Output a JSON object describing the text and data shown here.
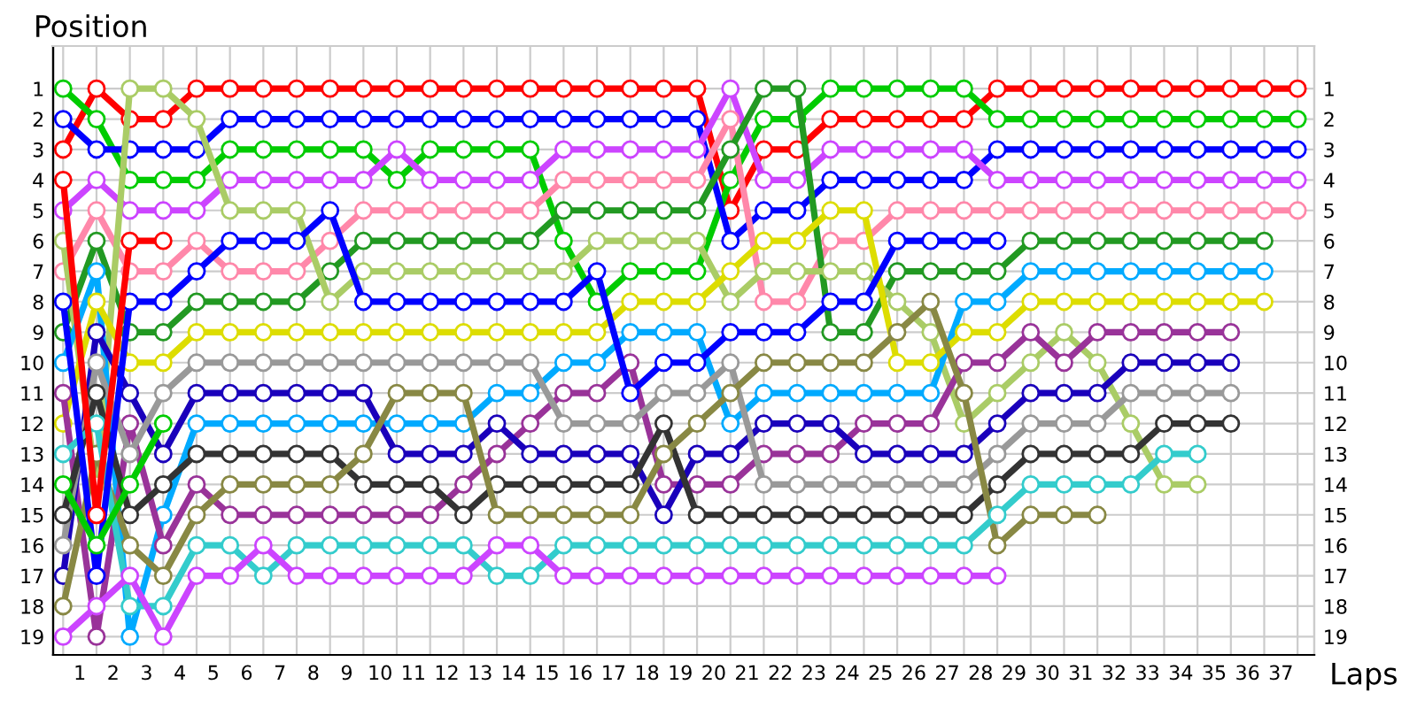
{
  "chart_data": {
    "type": "line",
    "xlabel": "Laps",
    "ylabel": "Position",
    "x": [
      0,
      1,
      2,
      3,
      4,
      5,
      6,
      7,
      8,
      9,
      10,
      11,
      12,
      13,
      14,
      15,
      16,
      17,
      18,
      19,
      20,
      21,
      22,
      23,
      24,
      25,
      26,
      27,
      28,
      29,
      30,
      31,
      32,
      33,
      34,
      35,
      36,
      37
    ],
    "xlim": [
      -0.3,
      37.5
    ],
    "ylim": [
      19.6,
      -0.4
    ],
    "y2lim": [
      19.6,
      -0.4
    ],
    "xticks": [
      {
        "value": 0.5,
        "label": "1"
      },
      {
        "value": 1.5,
        "label": "2"
      },
      {
        "value": 2.5,
        "label": "3"
      },
      {
        "value": 3.5,
        "label": "4"
      },
      {
        "value": 4.5,
        "label": "5"
      },
      {
        "value": 5.5,
        "label": "6"
      },
      {
        "value": 6.5,
        "label": "7"
      },
      {
        "value": 7.5,
        "label": "8"
      },
      {
        "value": 8.5,
        "label": "9"
      },
      {
        "value": 9.5,
        "label": "10"
      },
      {
        "value": 10.5,
        "label": "11"
      },
      {
        "value": 11.5,
        "label": "12"
      },
      {
        "value": 12.5,
        "label": "13"
      },
      {
        "value": 13.5,
        "label": "14"
      },
      {
        "value": 14.5,
        "label": "15"
      },
      {
        "value": 15.5,
        "label": "16"
      },
      {
        "value": 16.5,
        "label": "17"
      },
      {
        "value": 17.5,
        "label": "18"
      },
      {
        "value": 18.5,
        "label": "19"
      },
      {
        "value": 19.5,
        "label": "20"
      },
      {
        "value": 20.5,
        "label": "21"
      },
      {
        "value": 21.5,
        "label": "22"
      },
      {
        "value": 22.5,
        "label": "23"
      },
      {
        "value": 23.5,
        "label": "24"
      },
      {
        "value": 24.5,
        "label": "25"
      },
      {
        "value": 25.5,
        "label": "26"
      },
      {
        "value": 26.5,
        "label": "27"
      },
      {
        "value": 27.5,
        "label": "28"
      },
      {
        "value": 28.5,
        "label": "29"
      },
      {
        "value": 29.5,
        "label": "30"
      },
      {
        "value": 30.5,
        "label": "31"
      },
      {
        "value": 31.5,
        "label": "32"
      },
      {
        "value": 32.5,
        "label": "33"
      },
      {
        "value": 33.5,
        "label": "34"
      },
      {
        "value": 34.5,
        "label": "35"
      },
      {
        "value": 35.5,
        "label": "36"
      },
      {
        "value": 36.5,
        "label": "37"
      }
    ],
    "yticks": [
      1,
      2,
      3,
      4,
      5,
      6,
      7,
      8,
      9,
      10,
      11,
      12,
      13,
      14,
      15,
      16,
      17,
      18,
      19
    ],
    "y2ticks": [
      1,
      2,
      3,
      4,
      5,
      6,
      7,
      8,
      9,
      10,
      11,
      12,
      13,
      14,
      15,
      16,
      17,
      18,
      19
    ],
    "grid": true,
    "marker": "circle",
    "line_style": "solid",
    "series": [
      {
        "color": "#ff0000",
        "values": [
          3,
          1,
          2,
          2,
          1,
          1,
          1,
          1,
          1,
          1,
          1,
          1,
          1,
          1,
          1,
          1,
          1,
          1,
          1,
          1,
          5,
          3,
          3,
          2,
          2,
          2,
          2,
          2,
          1,
          1,
          1,
          1,
          1,
          1,
          1,
          1,
          1,
          1
        ]
      },
      {
        "color": "#00cc00",
        "values": [
          1,
          2,
          4,
          4,
          4,
          3,
          3,
          3,
          3,
          3,
          4,
          3,
          3,
          3,
          3,
          6,
          8,
          7,
          7,
          7,
          4,
          2,
          2,
          1,
          1,
          1,
          1,
          1,
          2,
          2,
          2,
          2,
          2,
          2,
          2,
          2,
          2,
          2
        ]
      },
      {
        "color": "#0000ff",
        "values": [
          2,
          3,
          3,
          3,
          3,
          2,
          2,
          2,
          2,
          2,
          2,
          2,
          2,
          2,
          2,
          2,
          2,
          2,
          2,
          2,
          6,
          5,
          5,
          4,
          4,
          4,
          4,
          4,
          3,
          3,
          3,
          3,
          3,
          3,
          3,
          3,
          3,
          3
        ]
      },
      {
        "color": "#cc44ff",
        "values": [
          5,
          4,
          5,
          5,
          5,
          4,
          4,
          4,
          4,
          4,
          3,
          4,
          4,
          4,
          4,
          3,
          3,
          3,
          3,
          3,
          1,
          4,
          4,
          3,
          3,
          3,
          3,
          3,
          4,
          4,
          4,
          4,
          4,
          4,
          4,
          4,
          4,
          4
        ]
      },
      {
        "color": "#ff88aa",
        "values": [
          7,
          5,
          7,
          7,
          6,
          7,
          7,
          7,
          6,
          5,
          5,
          5,
          5,
          5,
          5,
          4,
          4,
          4,
          4,
          4,
          2,
          8,
          8,
          6,
          6,
          5,
          5,
          5,
          5,
          5,
          5,
          5,
          5,
          5,
          5,
          5,
          5,
          5
        ]
      },
      {
        "color": "#229922",
        "values": [
          9,
          6,
          9,
          9,
          8,
          8,
          8,
          8,
          7,
          6,
          6,
          6,
          6,
          6,
          6,
          5,
          5,
          5,
          5,
          5,
          3,
          1,
          1,
          9,
          9,
          7,
          7,
          7,
          7,
          6,
          6,
          6,
          6,
          6,
          6,
          6,
          6,
          null
        ]
      },
      {
        "color": "#aacc66",
        "values": [
          6,
          14,
          1,
          1,
          2,
          5,
          5,
          5,
          8,
          7,
          7,
          7,
          7,
          7,
          7,
          7,
          6,
          6,
          6,
          6,
          8,
          7,
          7,
          7,
          7,
          8,
          9,
          12,
          11,
          10,
          9,
          10,
          12,
          14,
          14,
          null,
          null,
          null
        ]
      },
      {
        "color": "#00aaff",
        "values": [
          10,
          7,
          19,
          15,
          12,
          12,
          12,
          12,
          12,
          12,
          12,
          12,
          12,
          11,
          11,
          10,
          10,
          9,
          9,
          9,
          12,
          11,
          11,
          11,
          11,
          11,
          11,
          8,
          8,
          7,
          7,
          7,
          7,
          7,
          7,
          7,
          7,
          null
        ]
      },
      {
        "color": "#dddd00",
        "values": [
          12,
          8,
          10,
          10,
          9,
          9,
          9,
          9,
          9,
          9,
          9,
          9,
          9,
          9,
          9,
          9,
          9,
          8,
          8,
          8,
          7,
          6,
          6,
          5,
          5,
          10,
          10,
          9,
          9,
          8,
          8,
          8,
          8,
          8,
          8,
          8,
          8,
          null
        ]
      },
      {
        "color": "#993399",
        "values": [
          11,
          19,
          12,
          16,
          14,
          15,
          15,
          15,
          15,
          15,
          15,
          15,
          14,
          13,
          12,
          11,
          11,
          10,
          14,
          14,
          14,
          13,
          13,
          13,
          12,
          12,
          12,
          10,
          10,
          9,
          10,
          9,
          9,
          9,
          9,
          9,
          null,
          null
        ]
      },
      {
        "color": "#1a00bb",
        "values": [
          17,
          9,
          11,
          13,
          11,
          11,
          11,
          11,
          11,
          11,
          13,
          13,
          13,
          12,
          13,
          13,
          13,
          13,
          15,
          13,
          13,
          12,
          12,
          12,
          13,
          13,
          13,
          13,
          12,
          11,
          11,
          11,
          10,
          10,
          10,
          10,
          null,
          null
        ]
      },
      {
        "color": "#999999",
        "values": [
          16,
          10,
          13,
          11,
          10,
          10,
          10,
          10,
          10,
          10,
          10,
          10,
          10,
          10,
          10,
          12,
          12,
          12,
          11,
          11,
          10,
          14,
          14,
          14,
          14,
          14,
          14,
          14,
          13,
          12,
          12,
          12,
          11,
          11,
          11,
          11,
          null,
          null
        ]
      },
      {
        "color": "#333333",
        "values": [
          15,
          11,
          15,
          14,
          13,
          13,
          13,
          13,
          13,
          14,
          14,
          14,
          15,
          14,
          14,
          14,
          14,
          14,
          12,
          15,
          15,
          15,
          15,
          15,
          15,
          15,
          15,
          15,
          14,
          13,
          13,
          13,
          13,
          12,
          12,
          12,
          null,
          null
        ]
      },
      {
        "color": "#888844",
        "values": [
          18,
          13,
          16,
          17,
          15,
          14,
          14,
          14,
          14,
          13,
          11,
          11,
          11,
          15,
          15,
          15,
          15,
          15,
          13,
          12,
          11,
          10,
          10,
          10,
          10,
          9,
          8,
          11,
          16,
          15,
          15,
          15,
          null,
          null,
          null,
          null,
          null,
          null
        ]
      },
      {
        "color": "#33cccc",
        "values": [
          13,
          12,
          18,
          18,
          16,
          16,
          17,
          16,
          16,
          16,
          16,
          16,
          16,
          17,
          17,
          16,
          16,
          16,
          16,
          16,
          16,
          16,
          16,
          16,
          16,
          16,
          16,
          16,
          15,
          14,
          14,
          14,
          14,
          13,
          13,
          null,
          null,
          null
        ]
      },
      {
        "color": "#cc44ff",
        "values": [
          19,
          18,
          17,
          19,
          17,
          17,
          16,
          17,
          17,
          17,
          17,
          17,
          17,
          16,
          16,
          17,
          17,
          17,
          17,
          17,
          17,
          17,
          17,
          17,
          17,
          17,
          17,
          17,
          17,
          null,
          null,
          null,
          null,
          null,
          null,
          null,
          null,
          null
        ]
      },
      {
        "color": "#0000ff",
        "values": [
          8,
          17,
          8,
          8,
          7,
          6,
          6,
          6,
          5,
          8,
          8,
          8,
          8,
          8,
          8,
          8,
          7,
          11,
          10,
          10,
          9,
          9,
          9,
          8,
          8,
          6,
          6,
          6,
          6,
          null,
          null,
          null,
          null,
          null,
          null,
          null,
          null,
          null
        ]
      },
      {
        "color": "#ff0000",
        "values": [
          4,
          15,
          6,
          6,
          null,
          null,
          null,
          null,
          null,
          null,
          null,
          null,
          null,
          null,
          null,
          null,
          null,
          null,
          null,
          null,
          null,
          null,
          null,
          null,
          null,
          null,
          null,
          null,
          null,
          null,
          null,
          null,
          null,
          null,
          null,
          null,
          null,
          null
        ]
      },
      {
        "color": "#00cc00",
        "values": [
          14,
          16,
          14,
          12,
          null,
          null,
          null,
          null,
          null,
          null,
          null,
          null,
          null,
          null,
          null,
          null,
          null,
          null,
          null,
          null,
          null,
          null,
          null,
          null,
          null,
          null,
          null,
          null,
          null,
          null,
          null,
          null,
          null,
          null,
          null,
          null,
          null,
          null
        ]
      }
    ]
  }
}
